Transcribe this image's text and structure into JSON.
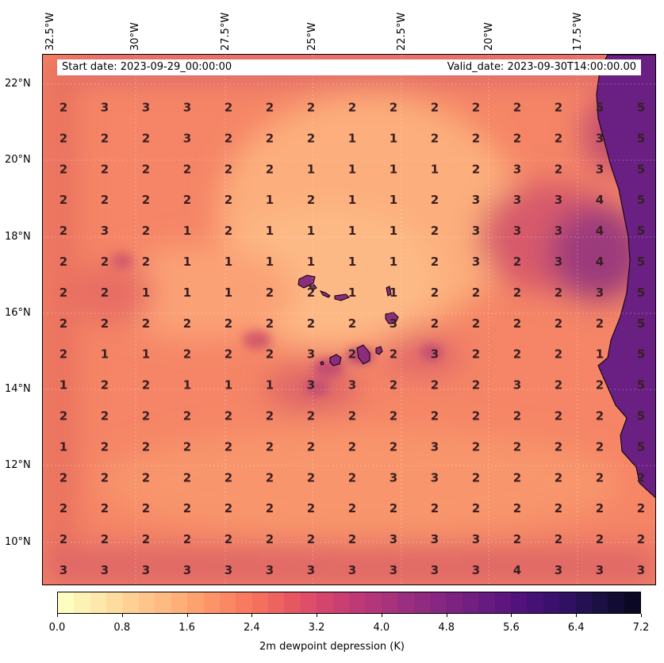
{
  "map": {
    "header": {
      "start_date": "Start date: 2023-09-29_00:00:00",
      "valid_date": "Valid_date: 2023-09-30T14:00:00.00"
    },
    "lon_labels": [
      "32.5°W",
      "30°W",
      "27.5°W",
      "25°W",
      "22.5°W",
      "20°W",
      "17.5°W"
    ],
    "lat_labels": [
      "22°N",
      "20°N",
      "18°N",
      "16°N",
      "14°N",
      "12°N",
      "10°N"
    ],
    "extent": {
      "lon_min": -32.6,
      "lon_max": -15.6,
      "lat_min": 8.9,
      "lat_max": 22.8
    },
    "colorbar": {
      "label": "2m dewpoint depression (K)",
      "ticks": [
        "0.0",
        "0.8",
        "1.6",
        "2.4",
        "3.2",
        "4.0",
        "4.8",
        "5.6",
        "6.4",
        "7.2"
      ],
      "range": [
        0.0,
        7.2
      ],
      "levels": 36,
      "colormap": "magma_r",
      "colors": [
        "#fcfdbf",
        "#fde3a6",
        "#fec98d",
        "#feae77",
        "#fc9065",
        "#f6735c",
        "#e75762",
        "#d1426f",
        "#b73779",
        "#9c2e7f",
        "#832681",
        "#6a1c81",
        "#51127c",
        "#36106b",
        "#1d1147",
        "#0a0822"
      ]
    },
    "grid_values": [
      [
        3,
        3,
        3,
        3,
        3,
        3,
        3,
        3,
        3,
        3,
        3,
        4,
        3,
        3,
        3
      ],
      [
        2,
        2,
        2,
        2,
        2,
        2,
        2,
        2,
        3,
        3,
        3,
        2,
        2,
        2,
        2
      ],
      [
        2,
        2,
        2,
        2,
        2,
        2,
        2,
        2,
        2,
        2,
        2,
        2,
        2,
        2,
        2
      ],
      [
        2,
        2,
        2,
        2,
        2,
        2,
        2,
        2,
        3,
        3,
        2,
        2,
        2,
        2,
        2
      ],
      [
        1,
        2,
        2,
        2,
        2,
        2,
        2,
        2,
        2,
        3,
        2,
        2,
        2,
        2,
        5
      ],
      [
        2,
        2,
        2,
        2,
        2,
        2,
        2,
        2,
        2,
        2,
        2,
        2,
        2,
        2,
        5
      ],
      [
        1,
        2,
        2,
        1,
        1,
        1,
        3,
        3,
        2,
        2,
        2,
        3,
        2,
        2,
        5
      ],
      [
        2,
        1,
        1,
        2,
        2,
        2,
        3,
        2,
        2,
        3,
        2,
        2,
        2,
        1,
        5
      ],
      [
        2,
        2,
        2,
        2,
        2,
        2,
        2,
        2,
        3,
        2,
        2,
        2,
        2,
        2,
        5
      ],
      [
        2,
        2,
        1,
        1,
        1,
        2,
        2,
        1,
        1,
        2,
        2,
        2,
        2,
        3,
        5
      ],
      [
        2,
        2,
        2,
        1,
        1,
        1,
        1,
        1,
        1,
        2,
        3,
        2,
        3,
        4,
        5
      ],
      [
        2,
        3,
        2,
        1,
        2,
        1,
        1,
        1,
        1,
        2,
        3,
        3,
        3,
        4,
        5
      ],
      [
        2,
        2,
        2,
        2,
        2,
        1,
        2,
        1,
        1,
        2,
        3,
        3,
        3,
        4,
        5
      ],
      [
        2,
        2,
        2,
        2,
        2,
        2,
        1,
        1,
        1,
        1,
        2,
        3,
        2,
        3,
        5
      ],
      [
        2,
        2,
        2,
        3,
        2,
        2,
        2,
        1,
        1,
        2,
        2,
        2,
        2,
        3,
        5
      ],
      [
        2,
        3,
        3,
        3,
        2,
        2,
        2,
        2,
        2,
        2,
        2,
        2,
        2,
        5,
        5
      ]
    ]
  }
}
